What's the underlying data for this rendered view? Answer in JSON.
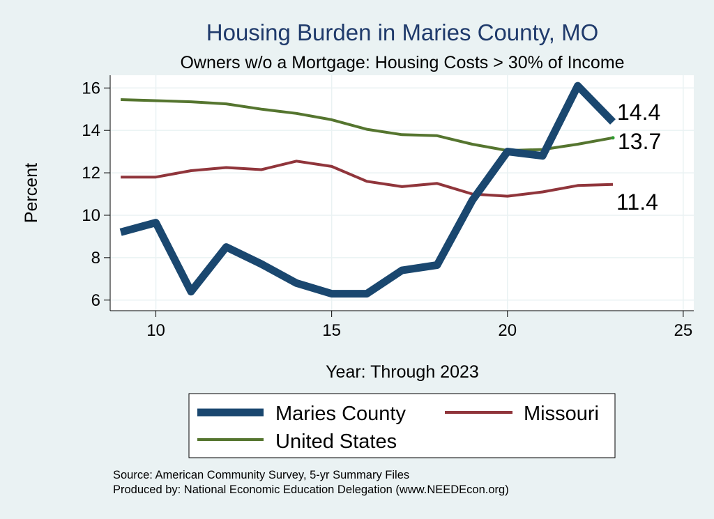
{
  "chart_data": {
    "type": "line",
    "title": "Housing Burden in Maries County, MO",
    "subtitle": "Owners w/o a Mortgage: Housing Costs > 30% of Income",
    "xlabel": "Year: Through 2023",
    "ylabel": "Percent",
    "xlim": [
      8.7,
      25.3
    ],
    "ylim": [
      5.5,
      16.6
    ],
    "x_ticks": [
      10,
      15,
      20,
      25
    ],
    "y_ticks": [
      6,
      8,
      10,
      12,
      14,
      16
    ],
    "grid": true,
    "legend_position": "bottom",
    "x": [
      9,
      10,
      11,
      12,
      13,
      14,
      15,
      16,
      17,
      18,
      19,
      20,
      21,
      22,
      23
    ],
    "series": [
      {
        "name": "Maries County",
        "color": "#1a476f",
        "values": [
          9.2,
          9.65,
          6.4,
          8.5,
          7.7,
          6.8,
          6.3,
          6.3,
          7.4,
          7.65,
          10.7,
          13.0,
          12.8,
          16.1,
          14.4
        ],
        "end_label": "14.4"
      },
      {
        "name": "Missouri",
        "color": "#90353b",
        "values": [
          11.8,
          11.8,
          12.1,
          12.25,
          12.15,
          12.55,
          12.3,
          11.6,
          11.35,
          11.5,
          11.0,
          10.9,
          11.1,
          11.4,
          11.45
        ],
        "end_label": "11.4"
      },
      {
        "name": "United States",
        "color": "#55752f",
        "values": [
          15.45,
          15.4,
          15.35,
          15.25,
          15.0,
          14.8,
          14.5,
          14.05,
          13.8,
          13.75,
          13.35,
          13.05,
          13.1,
          13.35,
          13.65
        ],
        "end_label": "13.7"
      }
    ],
    "source_lines": [
      "Source: American Community Survey, 5-yr Summary Files",
      "Produced by: National Economic Education Delegation (www.NEEDEcon.org)"
    ]
  }
}
